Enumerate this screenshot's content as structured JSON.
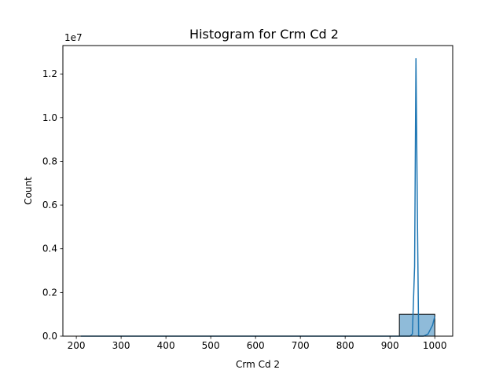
{
  "chart_data": {
    "type": "bar",
    "title": "Histogram for Crm Cd 2",
    "xlabel": "Crm Cd 2",
    "ylabel": "Count",
    "y_offset_label": "1e7",
    "xlim": [
      170,
      1040
    ],
    "ylim": [
      0,
      13300000
    ],
    "x_ticks": [
      200,
      300,
      400,
      500,
      600,
      700,
      800,
      900,
      1000
    ],
    "y_ticks": [
      0,
      2000000,
      4000000,
      6000000,
      8000000,
      10000000,
      12000000
    ],
    "y_tick_labels": [
      "0.0",
      "0.2",
      "0.4",
      "0.6",
      "0.8",
      "1.0",
      "1.2"
    ],
    "bin_edges": [
      210,
      289,
      368,
      447,
      526,
      605,
      684,
      763,
      842,
      921,
      1000
    ],
    "bin_counts": [
      0,
      0,
      0,
      0,
      0,
      0,
      0,
      0,
      0,
      1000000
    ],
    "kde": {
      "x": [
        210,
        600,
        850,
        900,
        910,
        920,
        930,
        940,
        945,
        950,
        955,
        958,
        961,
        964,
        967,
        970,
        975,
        985,
        995,
        1000
      ],
      "y": [
        0,
        0,
        0,
        0,
        0,
        0,
        0,
        0,
        0,
        100000,
        3200000,
        12700000,
        6000000,
        0,
        0,
        0,
        0,
        100000,
        500000,
        900000
      ]
    },
    "grid": false,
    "colors": {
      "bar_fill": "#1f77b4",
      "bar_fill_opacity": 0.5,
      "bar_edge": "#000000",
      "kde_line": "#1f77b4"
    }
  }
}
